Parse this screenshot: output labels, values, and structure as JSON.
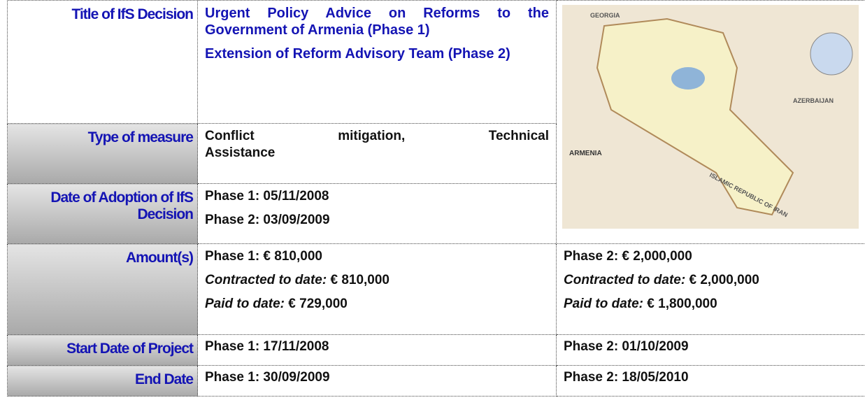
{
  "table": {
    "rows": [
      {
        "label": "Title of IfS Decision",
        "lines": [
          "Urgent Policy Advice on Reforms to the Government of Armenia (Phase 1)",
          "Extension of Reform Advisory Team (Phase 2)"
        ]
      },
      {
        "label": "Type of measure",
        "lines": [
          "Conflict mitigation, Technical Assistance"
        ]
      },
      {
        "label": "Date of Adoption of IfS Decision",
        "lines": [
          "Phase 1: 05/11/2008",
          "Phase 2: 03/09/2009"
        ]
      },
      {
        "label": "Amount(s)",
        "phases": [
          {
            "amount": "Phase 1: € 810,000",
            "contracted_label": "Contracted to date:",
            "contracted": "€ 810,000",
            "paid_label": "Paid to date:",
            "paid": "€ 729,000"
          },
          {
            "amount": "Phase 2: € 2,000,000",
            "contracted_label": "Contracted to date:",
            "contracted": "€ 2,000,000",
            "paid_label": "Paid to date:",
            "paid": "€ 1,800,000"
          }
        ]
      },
      {
        "label": "Start Date of Project",
        "phases": [
          "Phase 1: 17/11/2008",
          "Phase 2: 01/10/2009"
        ]
      },
      {
        "label": "End Date",
        "phases": [
          "Phase 1: 30/09/2009",
          "Phase 2: 18/05/2010"
        ]
      }
    ]
  },
  "map": {
    "labels": [
      "GEORGIA",
      "AZERBAIJAN",
      "ARMENIA",
      "ISLAMIC REPUBLIC OF IRAN"
    ]
  }
}
